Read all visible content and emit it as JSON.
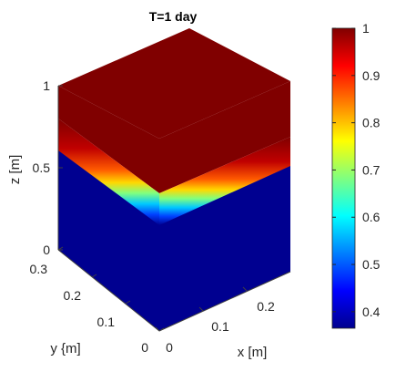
{
  "chart_data": {
    "type": "heatmap",
    "title": "T=1 day",
    "xlabel": "x [m]",
    "ylabel": "y {m]",
    "zlabel": "z [m]",
    "x_ticks": [
      "0",
      "0.1",
      "0.2"
    ],
    "y_ticks": [
      "0",
      "0.1",
      "0.2",
      "0.3"
    ],
    "z_ticks": [
      "0",
      "0.5",
      "1"
    ],
    "x_range": [
      0,
      0.3
    ],
    "y_range": [
      0,
      0.3
    ],
    "z_range": [
      0,
      1
    ],
    "interface_z": 0.6,
    "colorbar": {
      "colormap": "jet",
      "ticks": [
        "0.4",
        "0.5",
        "0.6",
        "0.7",
        "0.8",
        "0.9",
        "1"
      ],
      "range": [
        0.365,
        1.0
      ]
    },
    "values": {
      "min": 0.365,
      "max": 1.0,
      "top_face_value": 1.0,
      "lower_region_value": 0.365
    }
  }
}
